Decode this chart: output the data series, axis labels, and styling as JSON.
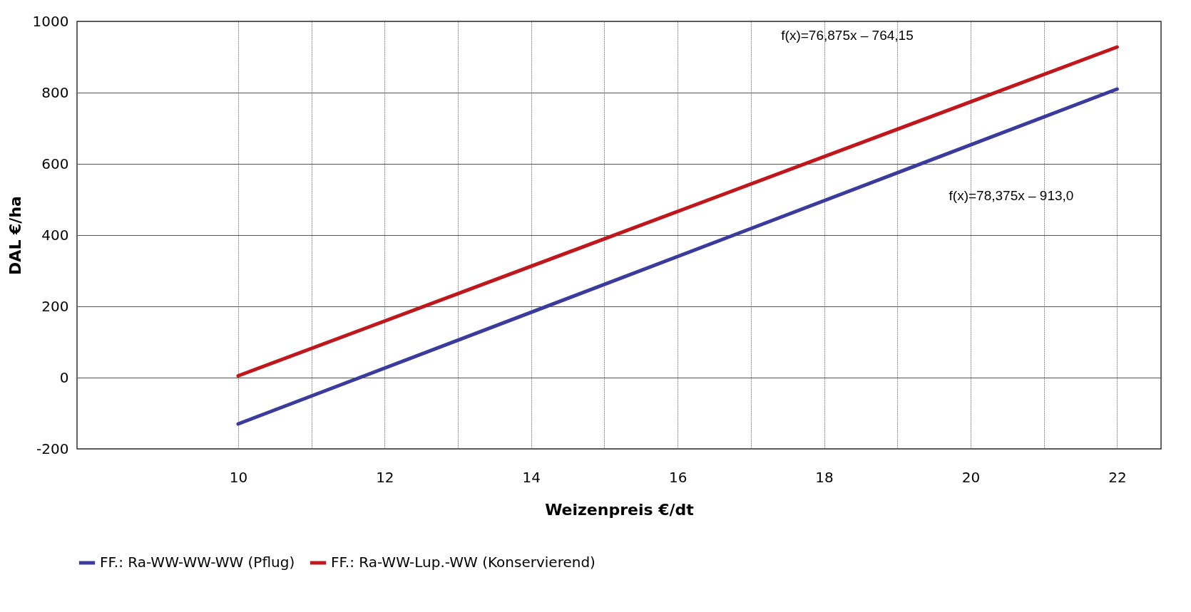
{
  "chart_data": {
    "type": "line",
    "xlabel": "Weizenpreis €/dt",
    "ylabel": "DAL €/ha",
    "x": [
      10,
      22
    ],
    "series": [
      {
        "name": "FF.: Ra-WW-WW-WW (Pflug)",
        "color": "#3b3b9e",
        "values": [
          -130,
          810
        ]
      },
      {
        "name": "FF.: Ra-WW-Lup.-WW (Konservierend)",
        "color": "#c0171c",
        "values": [
          5,
          928
        ]
      }
    ],
    "xlim": [
      7.8,
      22.6
    ],
    "xticks": [
      10,
      {
        "value": 11,
        "label": null
      },
      12,
      {
        "value": 13,
        "label": null
      },
      14,
      {
        "value": 15,
        "label": null
      },
      16,
      {
        "value": 17,
        "label": null
      },
      18,
      {
        "value": 19,
        "label": null
      },
      20,
      {
        "value": 21,
        "label": null
      },
      22
    ],
    "ylim": [
      -200,
      1000
    ],
    "yticks": [
      -200,
      0,
      200,
      400,
      600,
      800,
      1000
    ],
    "grid": true,
    "legend": "bottom",
    "marker": "none",
    "line_style": "solid",
    "annotations": [
      "f(x)=76,875x – 764,15",
      "f(x)=78,375x – 913,0"
    ]
  }
}
